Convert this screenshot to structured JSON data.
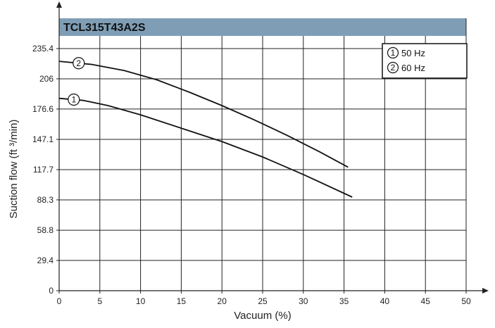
{
  "chart_data": {
    "type": "line",
    "title": "TCL315T43A2S",
    "xlabel": "Vacuum (%)",
    "ylabel": "Suction flow (ft ³/min)",
    "xlim": [
      0,
      50
    ],
    "ylim": [
      0,
      250
    ],
    "x_ticks": [
      "0",
      "5",
      "10",
      "15",
      "20",
      "25",
      "30",
      "35",
      "40",
      "45",
      "50"
    ],
    "y_ticks": [
      "0",
      "29.4",
      "58.8",
      "88.3",
      "117.7",
      "147.1",
      "176.6",
      "206",
      "235.4"
    ],
    "grid": true,
    "legend": [
      {
        "marker": "1",
        "label": "50 Hz"
      },
      {
        "marker": "2",
        "label": "60 Hz"
      }
    ],
    "legend_placement": "top-right",
    "series": [
      {
        "marker": "1",
        "x": [
          0,
          3,
          6,
          10,
          15,
          20,
          25,
          30,
          36
        ],
        "y": [
          187,
          185,
          180,
          171,
          158,
          145,
          130,
          113,
          91
        ]
      },
      {
        "marker": "2",
        "x": [
          0,
          4,
          8,
          12,
          16,
          20,
          24,
          28,
          32,
          35.5
        ],
        "y": [
          223,
          220,
          214,
          205,
          193,
          180,
          166,
          151,
          135,
          120
        ]
      }
    ],
    "colors": {
      "title_band": "#7f9eb6",
      "line": "#111111",
      "grid": "#222222"
    }
  }
}
